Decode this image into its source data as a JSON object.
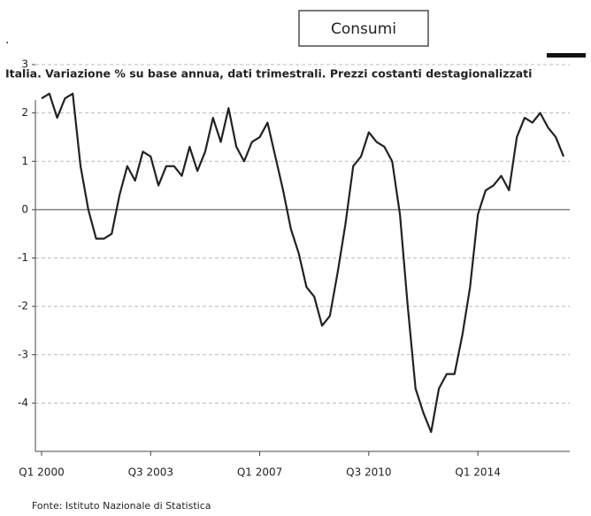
{
  "header": {
    "box_title": "Consumi",
    "dot": "."
  },
  "chart_data": {
    "type": "line",
    "title": "Italia. Variazione % su base annua, dati trimestrali. Prezzi costanti destagionalizzati",
    "source": "Fonte: Istituto Nazionale di Statistica",
    "categories": [
      "Q1 2000",
      null,
      null,
      null,
      null,
      null,
      null,
      null,
      null,
      null,
      null,
      null,
      null,
      null,
      "Q3 2003",
      null,
      null,
      null,
      null,
      null,
      null,
      null,
      null,
      null,
      null,
      null,
      null,
      null,
      "Q1 2007",
      null,
      null,
      null,
      null,
      null,
      null,
      null,
      null,
      null,
      null,
      null,
      null,
      null,
      "Q3 2010",
      null,
      null,
      null,
      null,
      null,
      null,
      null,
      null,
      null,
      null,
      null,
      null,
      null,
      "Q1 2014",
      null,
      null,
      null,
      null,
      null,
      null,
      null,
      null,
      null,
      null,
      null
    ],
    "series": [
      {
        "name": "Consumi",
        "color": "#222222",
        "values": [
          2.3,
          2.4,
          1.9,
          2.3,
          2.4,
          0.9,
          0.0,
          -0.6,
          -0.6,
          -0.5,
          0.3,
          0.9,
          0.6,
          1.2,
          1.1,
          0.5,
          0.9,
          0.9,
          0.7,
          1.3,
          0.8,
          1.2,
          1.9,
          1.4,
          2.1,
          1.3,
          1.0,
          1.4,
          1.5,
          1.8,
          1.1,
          0.4,
          -0.4,
          -0.9,
          -1.6,
          -1.8,
          -2.4,
          -2.2,
          -1.3,
          -0.3,
          0.9,
          1.1,
          1.6,
          1.4,
          1.3,
          1.0,
          -0.1,
          -2.0,
          -3.7,
          -4.2,
          -4.6,
          -3.7,
          -3.4,
          -3.4,
          -2.6,
          -1.6,
          -0.1,
          0.4,
          0.5,
          0.7,
          0.4,
          1.5,
          1.9,
          1.8,
          2.0,
          1.7,
          1.5,
          1.1
        ]
      }
    ],
    "ylim": [
      -5,
      3
    ],
    "yticks": [
      -4,
      -3,
      -2,
      -1,
      0,
      1,
      2,
      3
    ],
    "grid": true
  }
}
